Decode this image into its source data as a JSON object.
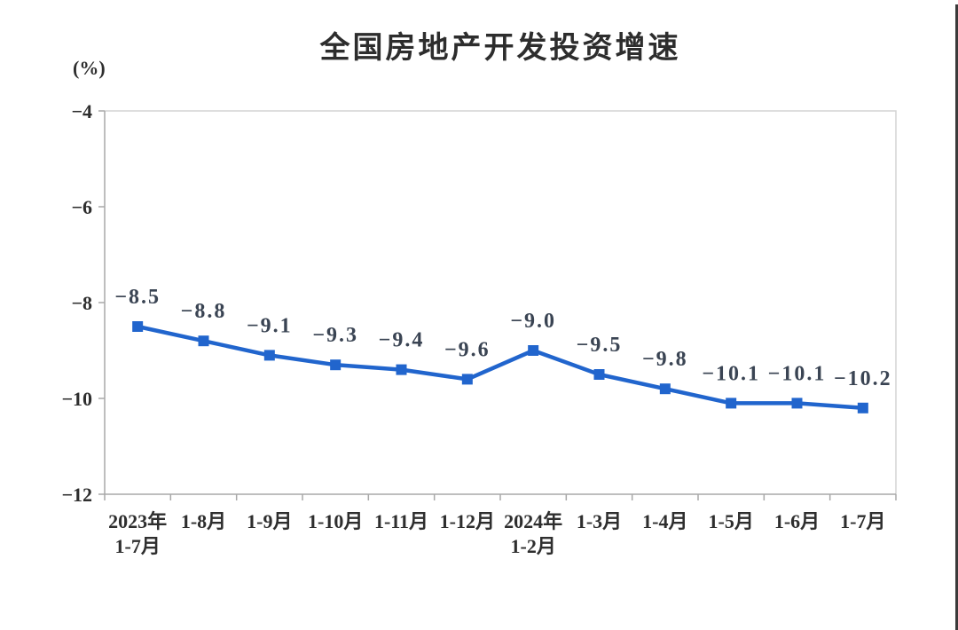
{
  "page": {
    "background": "#ffffff",
    "right_edge_color": "#3a3a3a"
  },
  "chart_data": {
    "type": "line",
    "title": "全国房地产开发投资增速",
    "ylabel": "(%)",
    "xlabel": "",
    "categories": [
      "2023年\n1-7月",
      "1-8月",
      "1-9月",
      "1-10月",
      "1-11月",
      "1-12月",
      "2024年\n1-2月",
      "1-3月",
      "1-4月",
      "1-5月",
      "1-6月",
      "1-7月"
    ],
    "values": [
      -8.5,
      -8.8,
      -9.1,
      -9.3,
      -9.4,
      -9.6,
      -9.0,
      -9.5,
      -9.8,
      -10.1,
      -10.1,
      -10.2
    ],
    "point_labels": [
      "−8.5",
      "−8.8",
      "−9.1",
      "−9.3",
      "−9.4",
      "−9.6",
      "−9.0",
      "−9.5",
      "−9.8",
      "−10.1",
      "−10.1",
      "−10.2"
    ],
    "ylim": [
      -12,
      -4
    ],
    "y_ticks": [
      -4,
      -6,
      -8,
      -10,
      -12
    ],
    "y_tick_labels": [
      "−4",
      "−6",
      "−8",
      "−10",
      "−12"
    ],
    "grid": false,
    "legend": false,
    "marker": "square",
    "line_color": "#2165cd",
    "marker_color": "#2165cd",
    "axis_color": "#a8a8a8",
    "border_color": "#d4d4d4",
    "tick_label_color": "#2e2e2e",
    "data_label_color": "#3a4453"
  }
}
